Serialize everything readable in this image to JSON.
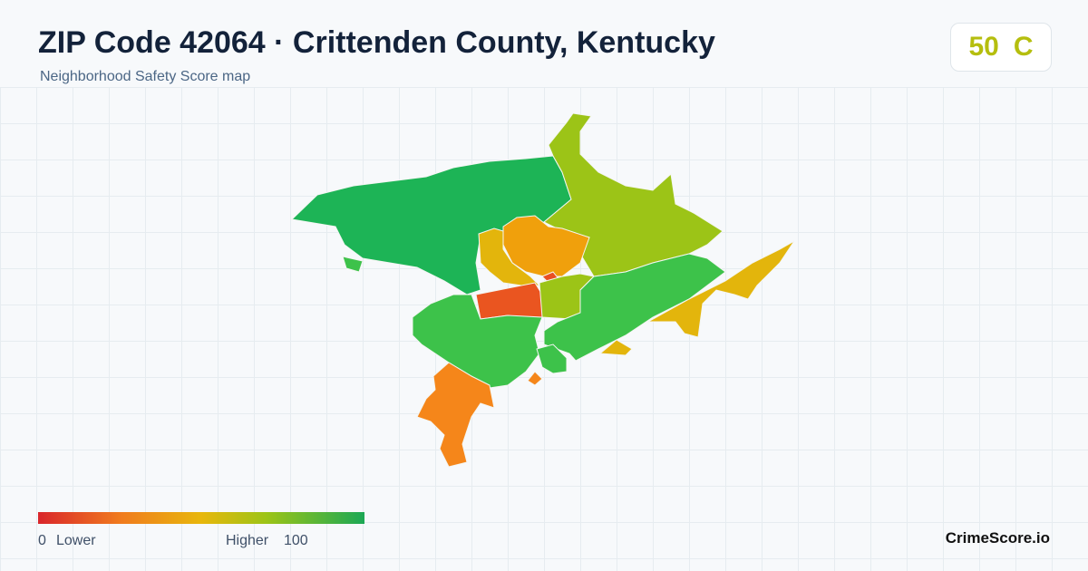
{
  "header": {
    "title": "ZIP Code 42064 · Crittenden County, Kentucky",
    "subtitle": "Neighborhood Safety Score map"
  },
  "score": {
    "value": "50",
    "grade": "C"
  },
  "legend": {
    "min": "0",
    "min_label": "Lower",
    "max_label": "Higher",
    "max": "100"
  },
  "brand": "CrimeScore.io"
}
